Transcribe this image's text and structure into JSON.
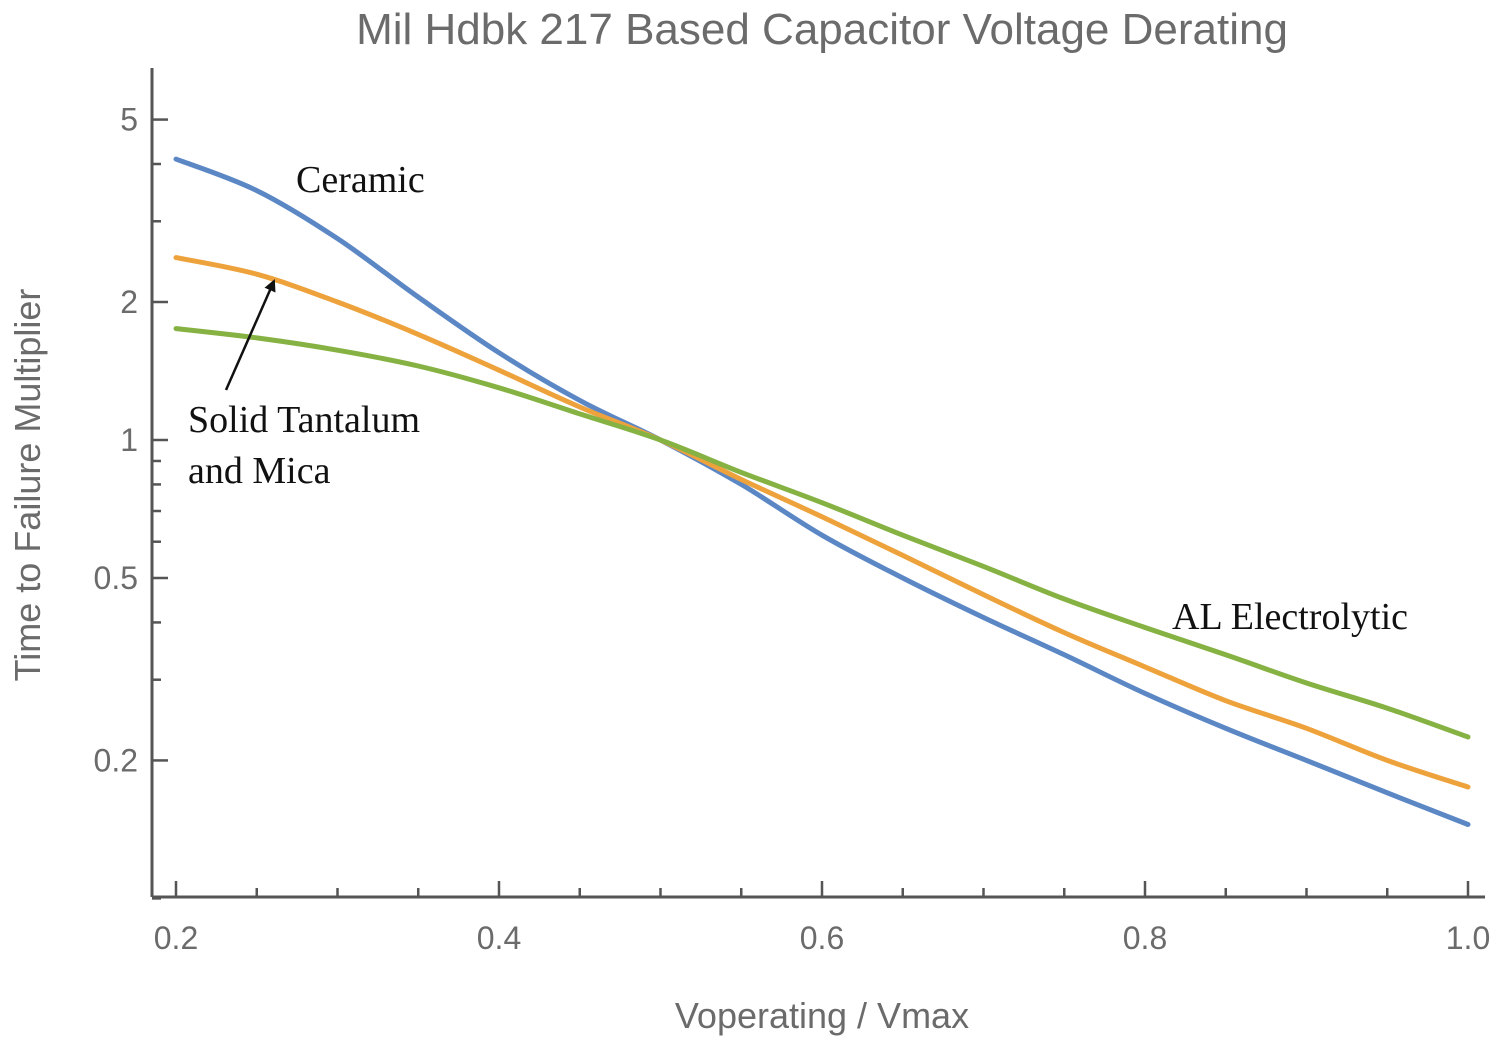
{
  "chart_data": {
    "type": "line",
    "title": "Mil Hdbk 217 Based Capacitor Voltage Derating",
    "xlabel": "Voperating / Vmax",
    "ylabel": "Time to Failure Multiplier",
    "yscale": "log",
    "xlim": [
      0.185,
      1.0
    ],
    "ylim": [
      0.09,
      6.2
    ],
    "x_ticks": [
      0.2,
      0.4,
      0.6,
      0.8,
      1.0
    ],
    "x_tick_labels": [
      "0.2",
      "0.4",
      "0.6",
      "0.8",
      "1.0"
    ],
    "x_minor_ticks": [
      0.25,
      0.3,
      0.35,
      0.45,
      0.5,
      0.55,
      0.65,
      0.7,
      0.75,
      0.85,
      0.9,
      0.95
    ],
    "y_ticks": [
      0.2,
      0.5,
      1,
      2,
      5
    ],
    "y_tick_labels": [
      "0.2",
      "0.5",
      "1",
      "2",
      "5"
    ],
    "y_minor_ticks": [
      0.1,
      0.3,
      0.4,
      0.6,
      0.7,
      0.8,
      0.9,
      3,
      4
    ],
    "series": [
      {
        "name": "Ceramic",
        "color": "#5b87c5",
        "x": [
          0.2,
          0.25,
          0.3,
          0.35,
          0.4,
          0.45,
          0.5,
          0.55,
          0.6,
          0.65,
          0.7,
          0.75,
          0.8,
          0.85,
          0.9,
          0.95,
          1.0
        ],
        "y": [
          4.1,
          3.5,
          2.75,
          2.05,
          1.55,
          1.22,
          1.0,
          0.8,
          0.62,
          0.5,
          0.41,
          0.34,
          0.28,
          0.235,
          0.2,
          0.17,
          0.145
        ]
      },
      {
        "name": "Solid Tantalum and Mica",
        "color": "#eda23c",
        "x": [
          0.2,
          0.25,
          0.3,
          0.35,
          0.4,
          0.45,
          0.5,
          0.55,
          0.6,
          0.65,
          0.7,
          0.75,
          0.8,
          0.85,
          0.9,
          0.95,
          1.0
        ],
        "y": [
          2.5,
          2.3,
          2.0,
          1.7,
          1.42,
          1.18,
          1.0,
          0.82,
          0.68,
          0.56,
          0.46,
          0.38,
          0.32,
          0.27,
          0.235,
          0.2,
          0.175
        ]
      },
      {
        "name": "AL Electrolytic",
        "color": "#85b243",
        "x": [
          0.2,
          0.25,
          0.3,
          0.35,
          0.4,
          0.45,
          0.5,
          0.55,
          0.6,
          0.65,
          0.7,
          0.75,
          0.8,
          0.85,
          0.9,
          0.95,
          1.0
        ],
        "y": [
          1.75,
          1.67,
          1.57,
          1.45,
          1.3,
          1.14,
          1.0,
          0.85,
          0.73,
          0.62,
          0.53,
          0.45,
          0.39,
          0.34,
          0.295,
          0.26,
          0.225
        ]
      }
    ],
    "annotations": [
      {
        "text": "Ceramic",
        "series": "Ceramic"
      },
      {
        "text": "Solid Tantalum",
        "series": "Solid Tantalum and Mica",
        "line": 1
      },
      {
        "text": "and Mica",
        "series": "Solid Tantalum and Mica",
        "line": 2
      },
      {
        "text": "AL Electrolytic",
        "series": "AL Electrolytic"
      }
    ]
  }
}
